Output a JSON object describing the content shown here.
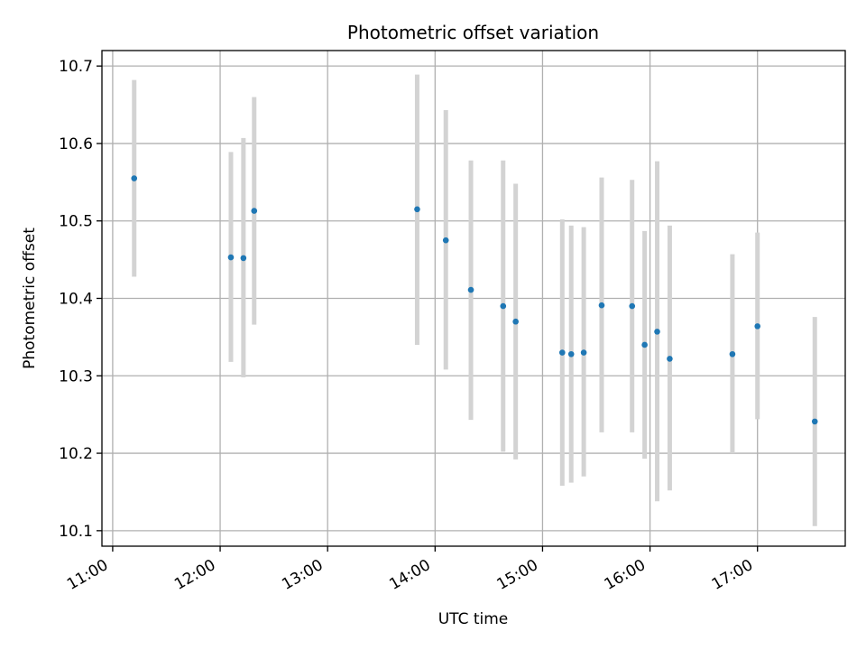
{
  "chart_data": {
    "type": "scatter",
    "title": "Photometric offset variation",
    "xlabel": "UTC time",
    "ylabel": "Photometric offset",
    "x_axis": {
      "type": "time",
      "range": [
        "10:54",
        "17:49"
      ],
      "ticks": [
        "11:00",
        "12:00",
        "13:00",
        "14:00",
        "15:00",
        "16:00",
        "17:00"
      ]
    },
    "y_axis": {
      "range": [
        10.08,
        10.72
      ],
      "ticks": [
        "10.1",
        "10.2",
        "10.3",
        "10.4",
        "10.5",
        "10.6",
        "10.7"
      ]
    },
    "grid": true,
    "marker_color": "#1f77b4",
    "errorbar_color": "#d3d3d3",
    "points": [
      {
        "x": "11:12",
        "y": 10.555,
        "ylow": 10.428,
        "yhigh": 10.682
      },
      {
        "x": "12:06",
        "y": 10.453,
        "ylow": 10.318,
        "yhigh": 10.589
      },
      {
        "x": "12:13",
        "y": 10.452,
        "ylow": 10.298,
        "yhigh": 10.607
      },
      {
        "x": "12:19",
        "y": 10.513,
        "ylow": 10.366,
        "yhigh": 10.66
      },
      {
        "x": "13:50",
        "y": 10.515,
        "ylow": 10.34,
        "yhigh": 10.689
      },
      {
        "x": "14:06",
        "y": 10.475,
        "ylow": 10.308,
        "yhigh": 10.643
      },
      {
        "x": "14:20",
        "y": 10.411,
        "ylow": 10.243,
        "yhigh": 10.578
      },
      {
        "x": "14:38",
        "y": 10.39,
        "ylow": 10.202,
        "yhigh": 10.578
      },
      {
        "x": "14:45",
        "y": 10.37,
        "ylow": 10.192,
        "yhigh": 10.548
      },
      {
        "x": "15:11",
        "y": 10.33,
        "ylow": 10.158,
        "yhigh": 10.502
      },
      {
        "x": "15:16",
        "y": 10.328,
        "ylow": 10.162,
        "yhigh": 10.494
      },
      {
        "x": "15:23",
        "y": 10.33,
        "ylow": 10.17,
        "yhigh": 10.492
      },
      {
        "x": "15:33",
        "y": 10.391,
        "ylow": 10.227,
        "yhigh": 10.556
      },
      {
        "x": "15:50",
        "y": 10.39,
        "ylow": 10.227,
        "yhigh": 10.553
      },
      {
        "x": "15:57",
        "y": 10.34,
        "ylow": 10.193,
        "yhigh": 10.487
      },
      {
        "x": "16:04",
        "y": 10.357,
        "ylow": 10.138,
        "yhigh": 10.577
      },
      {
        "x": "16:11",
        "y": 10.322,
        "ylow": 10.152,
        "yhigh": 10.494
      },
      {
        "x": "16:46",
        "y": 10.328,
        "ylow": 10.2,
        "yhigh": 10.457
      },
      {
        "x": "17:00",
        "y": 10.364,
        "ylow": 10.244,
        "yhigh": 10.485
      },
      {
        "x": "17:32",
        "y": 10.241,
        "ylow": 10.106,
        "yhigh": 10.376
      }
    ]
  }
}
